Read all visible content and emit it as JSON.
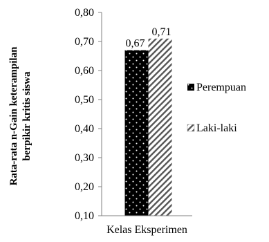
{
  "chart_data": {
    "type": "bar",
    "title": "",
    "ylabel_lines": [
      "Rata-rata n-Gain keterampilan",
      "berpikir kritis siswa"
    ],
    "xlabel": "",
    "categories": [
      "Kelas Eksperimen"
    ],
    "series": [
      {
        "name": "Perempuan",
        "values": [
          0.67
        ],
        "label": "0,67",
        "pattern": "dots",
        "color": "#000000"
      },
      {
        "name": "Laki-laki",
        "values": [
          0.71
        ],
        "label": "0,71",
        "pattern": "diagonal-hatch",
        "color": "#000000"
      }
    ],
    "ylim": [
      0.1,
      0.8
    ],
    "yticks": [
      0.1,
      0.2,
      0.3,
      0.4,
      0.5,
      0.6,
      0.7,
      0.8
    ],
    "ytick_labels": [
      "0,10",
      "0,20",
      "0,30",
      "0,40",
      "0,50",
      "0,60",
      "0,70",
      "0,80"
    ],
    "grid": false,
    "legend_position": "right"
  }
}
